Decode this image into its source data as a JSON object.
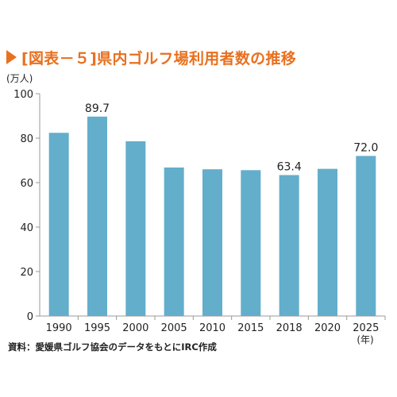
{
  "header": {
    "title": "[図表－５]県内ゴルフ場利用者数の推移"
  },
  "chart_data": {
    "type": "bar",
    "title": "[図表－５]県内ゴルフ場利用者数の推移",
    "ylabel": "(万人)",
    "xlabel": "(年)",
    "categories": [
      "1990",
      "1995",
      "2000",
      "2005",
      "2010",
      "2015",
      "2018",
      "2020",
      "2025"
    ],
    "values": [
      82.4,
      89.7,
      78.6,
      66.8,
      66.0,
      65.6,
      63.4,
      66.2,
      72.0
    ],
    "data_labels": {
      "1995": "89.7",
      "2018": "63.4",
      "2025": "72.0"
    },
    "yticks": [
      0,
      20,
      40,
      60,
      80,
      100
    ],
    "ylim": [
      0,
      100
    ],
    "grid": false,
    "bar_color": "#63aecb",
    "axis_color": "#9a9a9a"
  },
  "footer": {
    "source": "資料：愛媛県ゴルフ協会のデータをもとにIRC作成"
  }
}
